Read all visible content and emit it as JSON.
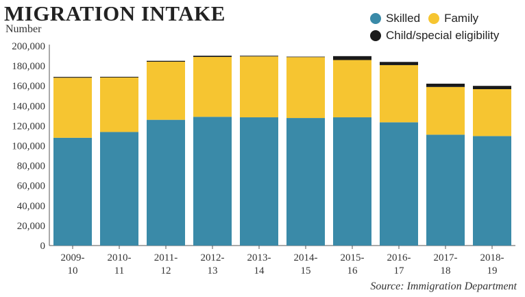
{
  "title": "MIGRATION INTAKE",
  "source": "Source: Immigration Department",
  "chart_data": {
    "type": "bar",
    "stacked": true,
    "title": "MIGRATION INTAKE",
    "ylabel": "Number",
    "xlabel": "",
    "ylim": [
      0,
      200000
    ],
    "yticks": [
      0,
      20000,
      40000,
      60000,
      80000,
      100000,
      120000,
      140000,
      160000,
      180000,
      200000
    ],
    "ytick_labels": [
      "0",
      "20,000",
      "40,000",
      "60,000",
      "80,000",
      "100,000",
      "120,000",
      "140,000",
      "160,000",
      "180,000",
      "200,000"
    ],
    "categories": [
      [
        "2009-",
        "10"
      ],
      [
        "2010-",
        "11"
      ],
      [
        "2011-",
        "12"
      ],
      [
        "2012-",
        "13"
      ],
      [
        "2013-",
        "14"
      ],
      [
        "2014-",
        "15"
      ],
      [
        "2015-",
        "16"
      ],
      [
        "2016-",
        "17"
      ],
      [
        "2017-",
        "18"
      ],
      [
        "2018-",
        "19"
      ]
    ],
    "series": [
      {
        "name": "Skilled",
        "color": "#3a8aa8",
        "values": [
          108000,
          113800,
          126000,
          129000,
          128500,
          127800,
          128500,
          123500,
          111100,
          109700
        ]
      },
      {
        "name": "Family",
        "color": "#f6c531",
        "values": [
          60200,
          54600,
          58200,
          60000,
          61000,
          61000,
          57400,
          57300,
          47800,
          47000
        ]
      },
      {
        "name": "Child/special eligibility",
        "color": "#1a1a1a",
        "values": [
          800,
          700,
          900,
          1200,
          700,
          500,
          3900,
          3200,
          3300,
          3300
        ]
      }
    ],
    "legend": "top-right"
  }
}
